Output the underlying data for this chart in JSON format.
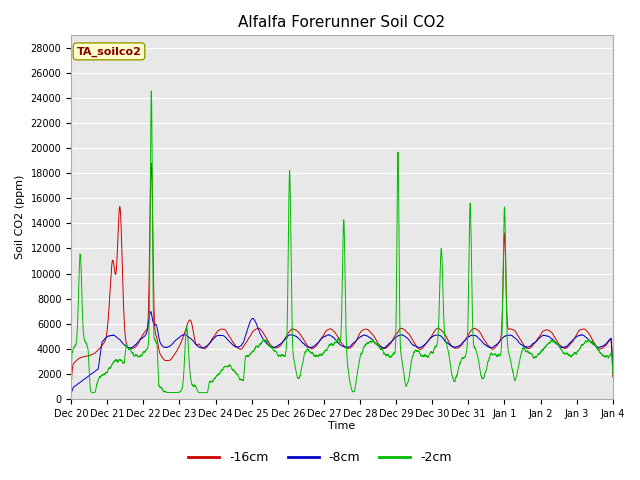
{
  "title": "Alfalfa Forerunner Soil CO2",
  "ylabel": "Soil CO2 (ppm)",
  "xlabel": "Time",
  "annotation": "TA_soilco2",
  "ylim": [
    0,
    29000
  ],
  "yticks": [
    0,
    2000,
    4000,
    6000,
    8000,
    10000,
    12000,
    14000,
    16000,
    18000,
    20000,
    22000,
    24000,
    26000,
    28000
  ],
  "xtick_labels": [
    "Dec 20",
    "Dec 21",
    "Dec 22",
    "Dec 23",
    "Dec 24",
    "Dec 25",
    "Dec 26",
    "Dec 27",
    "Dec 28",
    "Dec 29",
    "Dec 30",
    "Dec 31",
    "Jan 1",
    "Jan 2",
    "Jan 3",
    "Jan 4"
  ],
  "color_16cm": "#cc0000",
  "color_8cm": "#0000cc",
  "color_2cm": "#00bb00",
  "fig_bg": "#ffffff",
  "plot_bg": "#e8e8e8",
  "grid_color": "#ffffff",
  "legend_labels": [
    "-16cm",
    "-8cm",
    "-2cm"
  ],
  "seed": 42
}
